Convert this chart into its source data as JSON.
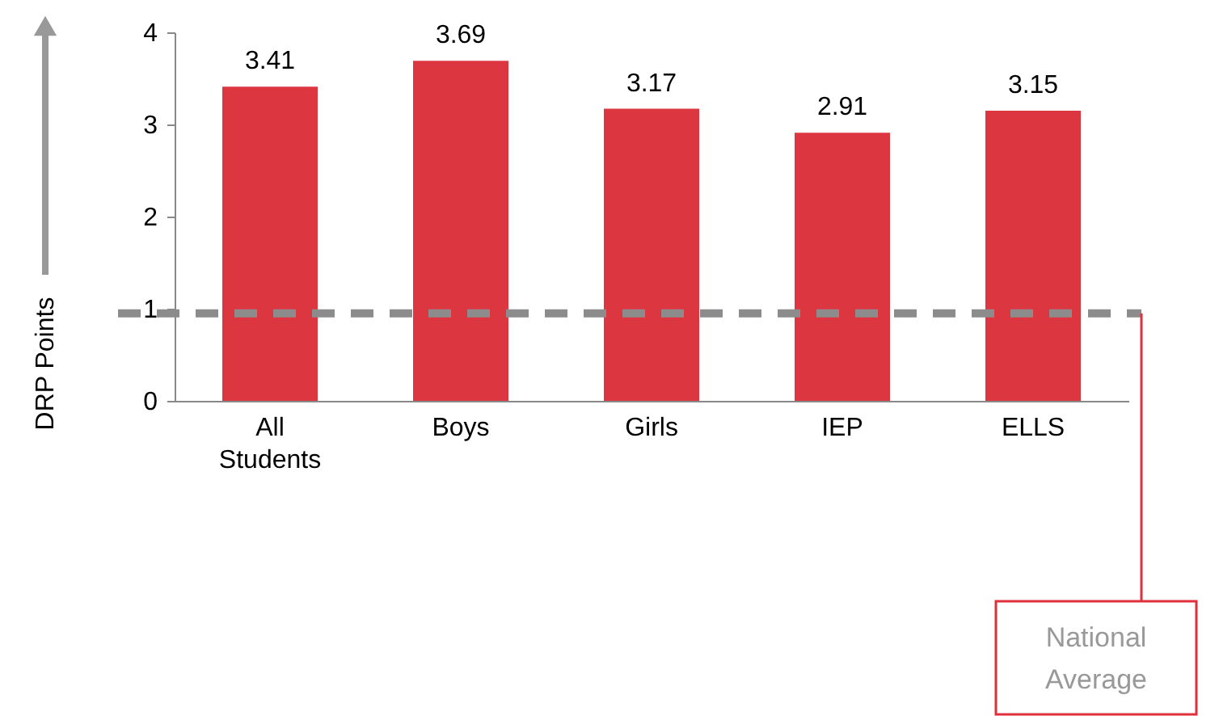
{
  "chart_data": {
    "type": "bar",
    "categories": [
      "All Students",
      "Boys",
      "Girls",
      "IEP",
      "ELLS"
    ],
    "values": [
      3.41,
      3.69,
      3.17,
      2.91,
      3.15
    ],
    "color": "#dc3741",
    "data_labels": true,
    "ylabel": "DRP Points",
    "ylim": [
      0,
      4
    ],
    "yticks": [
      0,
      1,
      2,
      3,
      4
    ],
    "grid": false,
    "ref_lines": [
      {
        "axis": "y",
        "value": 0.95,
        "label": "National Average",
        "color": "#8c8c8c",
        "line_style": "dashed"
      }
    ]
  }
}
